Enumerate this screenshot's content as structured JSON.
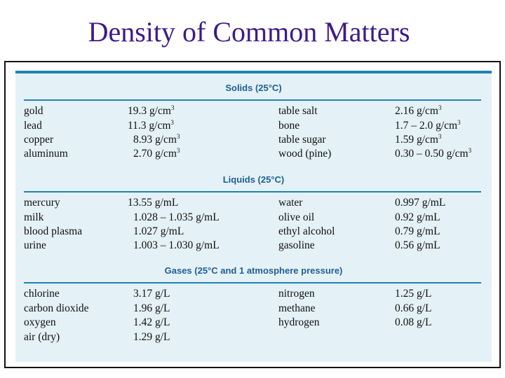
{
  "title": "Density of Common Matters",
  "sections": [
    {
      "heading": "Solids (25°C)",
      "rows": [
        {
          "left_name": "gold",
          "left_value": "19.3 g/cm",
          "left_sup": "3",
          "right_name": "table salt",
          "right_value": "2.16 g/cm",
          "right_sup": "3"
        },
        {
          "left_name": "lead",
          "left_value": "11.3 g/cm",
          "left_sup": "3",
          "right_name": "bone",
          "right_value": "1.7 – 2.0 g/cm",
          "right_sup": "3"
        },
        {
          "left_name": "copper",
          "left_value": "8.93 g/cm",
          "left_sup": "3",
          "right_name": "table sugar",
          "right_value": "1.59 g/cm",
          "right_sup": "3"
        },
        {
          "left_name": "aluminum",
          "left_value": "2.70 g/cm",
          "left_sup": "3",
          "right_name": "wood (pine)",
          "right_value": "0.30 – 0.50 g/cm",
          "right_sup": "3"
        }
      ]
    },
    {
      "heading": "Liquids (25°C)",
      "rows": [
        {
          "left_name": "mercury",
          "left_value": "13.55 g/mL",
          "left_sup": "",
          "right_name": "water",
          "right_value": "0.997 g/mL",
          "right_sup": ""
        },
        {
          "left_name": "milk",
          "left_value": "1.028 – 1.035 g/mL",
          "left_sup": "",
          "right_name": "olive oil",
          "right_value": "0.92 g/mL",
          "right_sup": ""
        },
        {
          "left_name": "blood plasma",
          "left_value": "1.027 g/mL",
          "left_sup": "",
          "right_name": "ethyl alcohol",
          "right_value": "0.79 g/mL",
          "right_sup": ""
        },
        {
          "left_name": "urine",
          "left_value": "1.003 – 1.030 g/mL",
          "left_sup": "",
          "right_name": "gasoline",
          "right_value": "0.56 g/mL",
          "right_sup": ""
        }
      ]
    },
    {
      "heading": "Gases (25°C and 1 atmosphere pressure)",
      "rows": [
        {
          "left_name": "chlorine",
          "left_value": "3.17 g/L",
          "left_sup": "",
          "right_name": "nitrogen",
          "right_value": "1.25 g/L",
          "right_sup": ""
        },
        {
          "left_name": "carbon dioxide",
          "left_value": "1.96 g/L",
          "left_sup": "",
          "right_name": "methane",
          "right_value": "0.66 g/L",
          "right_sup": ""
        },
        {
          "left_name": "oxygen",
          "left_value": "1.42 g/L",
          "left_sup": "",
          "right_name": "hydrogen",
          "right_value": "0.08 g/L",
          "right_sup": ""
        },
        {
          "left_name": "air (dry)",
          "left_value": "1.29 g/L",
          "left_sup": "",
          "right_name": "",
          "right_value": "",
          "right_sup": ""
        }
      ]
    }
  ]
}
